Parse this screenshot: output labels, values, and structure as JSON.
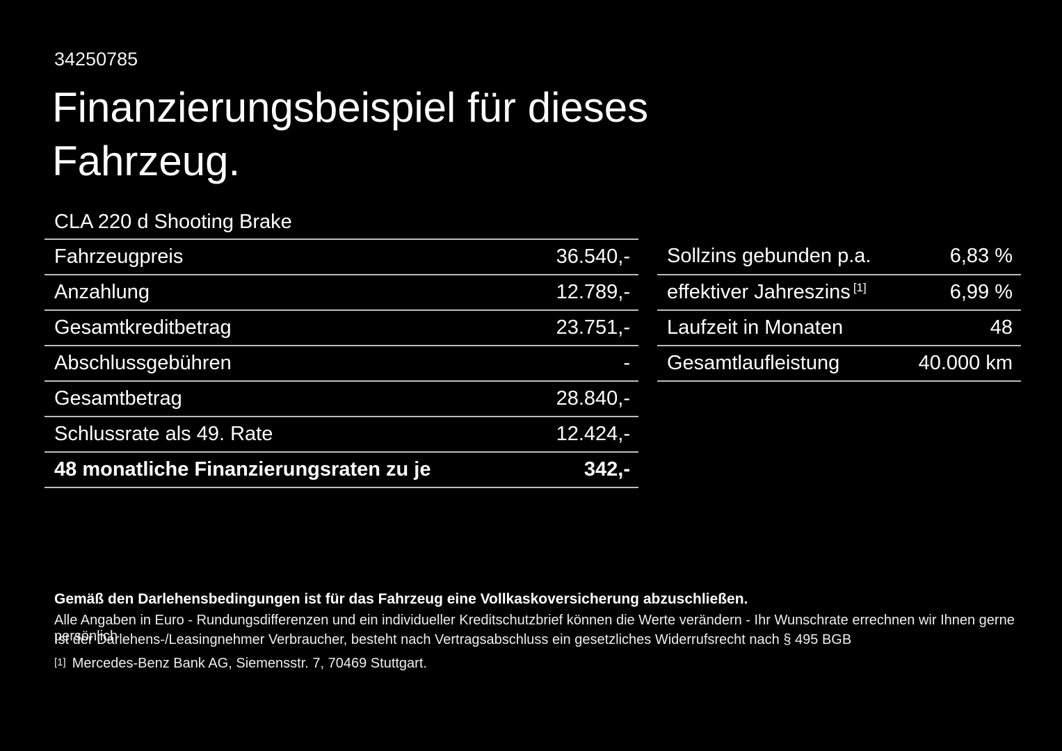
{
  "page": {
    "id_number": "34250785",
    "title": "Finanzierungsbeispiel für dieses Fahrzeug.",
    "vehicle": "CLA 220 d Shooting Brake"
  },
  "finance_table": {
    "rows": [
      {
        "label": "Fahrzeugpreis",
        "value": "36.540,-"
      },
      {
        "label": "Anzahlung",
        "value": "12.789,-"
      },
      {
        "label": "Gesamtkreditbetrag",
        "value": "23.751,-"
      },
      {
        "label": "Abschlussgebühren",
        "value": "-"
      },
      {
        "label": "Gesamtbetrag",
        "value": "28.840,-"
      },
      {
        "label": "Schlussrate als 49. Rate",
        "value": "12.424,-"
      },
      {
        "label": "48 monatliche Finanzierungsraten zu je",
        "value": "342,-"
      }
    ]
  },
  "conditions_table": {
    "rows": [
      {
        "label": "Sollzins gebunden p.a.",
        "sup": "",
        "value": "6,83 %"
      },
      {
        "label": "effektiver Jahreszins",
        "sup": "[1]",
        "value": "6,99 %"
      },
      {
        "label": "Laufzeit in Monaten",
        "sup": "",
        "value": "48"
      },
      {
        "label": "Gesamtlaufleistung",
        "sup": "",
        "value": "40.000 km"
      }
    ]
  },
  "footnotes": {
    "insurance_note": "Gemäß den Darlehensbedingungen ist für das Fahrzeug eine Vollkaskoversicherung abzuschließen.",
    "euro_note": "Alle Angaben in Euro - Rundungsdifferenzen und ein individueller Kreditschutzbrief können die Werte verändern - Ihr Wunschrate errechnen wir Ihnen gerne persönlich",
    "withdrawal_note": "Ist der Darlehens-/Leasingnehmer Verbraucher, besteht nach Vertragsabschluss ein gesetzliches Widerrufsrecht nach § 495 BGB",
    "reference_marker": "[1]",
    "reference_note": "Mercedes-Benz Bank AG, Siemensstr. 7, 70469 Stuttgart."
  },
  "colors": {
    "background": "#000000",
    "text": "#ffffff",
    "divider": "#bfbfbf"
  }
}
